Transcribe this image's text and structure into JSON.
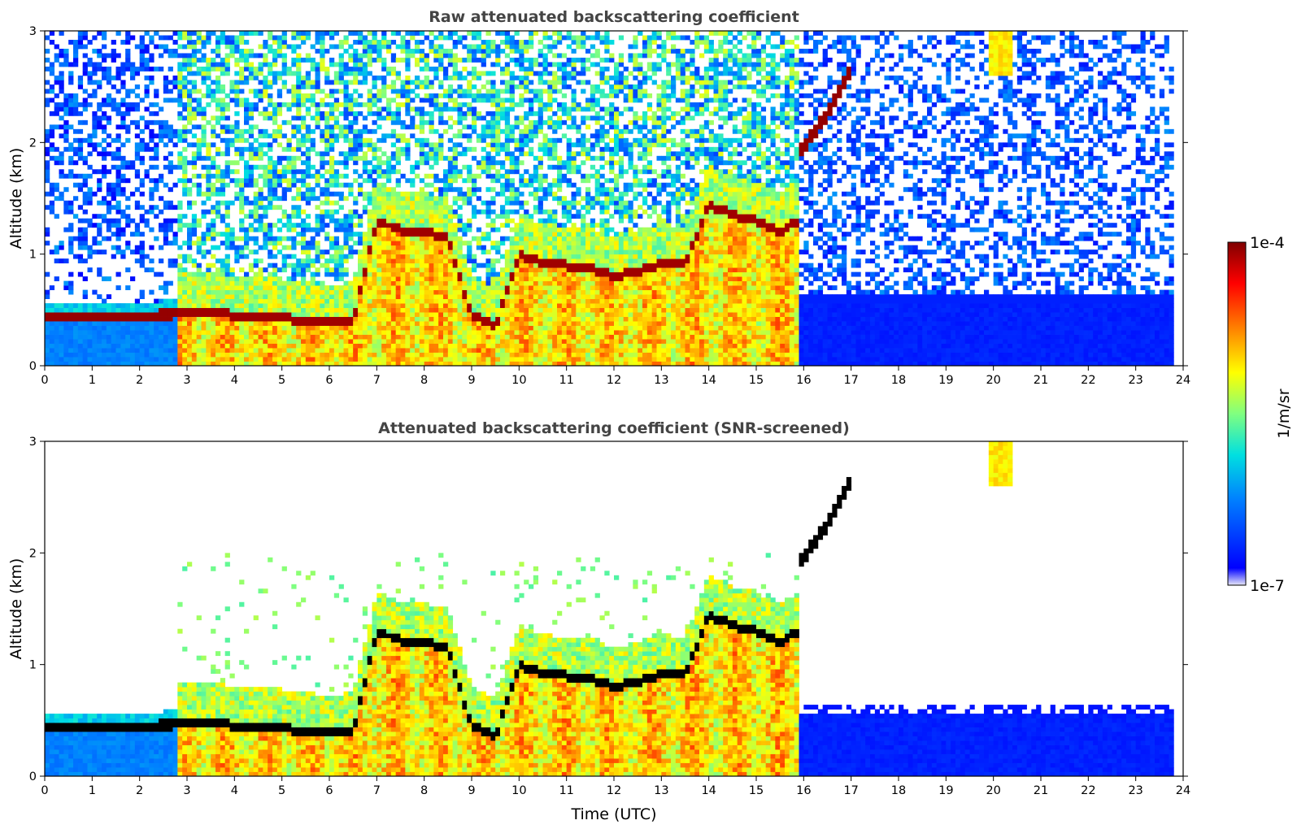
{
  "chart_data": [
    {
      "type": "heatmap",
      "title": "Raw attenuated backscattering coefficient",
      "xlabel": "",
      "ylabel": "Altitude (km)",
      "xlim": [
        0,
        24
      ],
      "ylim": [
        0,
        3
      ],
      "x_ticks": [
        "0",
        "1",
        "2",
        "3",
        "4",
        "5",
        "6",
        "7",
        "8",
        "9",
        "10",
        "11",
        "12",
        "13",
        "14",
        "15",
        "16",
        "17",
        "18",
        "19",
        "20",
        "21",
        "22",
        "23",
        "24"
      ],
      "y_ticks": [
        "0",
        "1",
        "2",
        "3"
      ],
      "data_end_time": 23.8,
      "screened": false,
      "features": {
        "boundary_layer_top_km": [
          [
            0,
            0.45
          ],
          [
            1,
            0.45
          ],
          [
            2,
            0.44
          ],
          [
            2.8,
            0.47
          ],
          [
            3.5,
            0.5
          ],
          [
            4,
            0.45
          ],
          [
            4.5,
            0.45
          ],
          [
            5,
            0.43
          ],
          [
            5.5,
            0.4
          ],
          [
            6,
            0.38
          ],
          [
            6.5,
            0.4
          ],
          [
            7,
            1.3
          ],
          [
            7.5,
            1.22
          ],
          [
            8,
            1.2
          ],
          [
            8.5,
            1.15
          ],
          [
            9,
            0.45
          ],
          [
            9.5,
            0.35
          ],
          [
            10,
            1.0
          ],
          [
            10.5,
            0.92
          ],
          [
            11,
            0.9
          ],
          [
            11.5,
            0.88
          ],
          [
            12,
            0.8
          ],
          [
            12.5,
            0.85
          ],
          [
            13,
            0.92
          ],
          [
            13.5,
            0.9
          ],
          [
            14,
            1.45
          ],
          [
            14.5,
            1.35
          ],
          [
            15,
            1.3
          ],
          [
            15.5,
            1.2
          ],
          [
            15.9,
            1.3
          ]
        ],
        "rising_layer_km": [
          [
            15.9,
            1.9
          ],
          [
            16.5,
            2.25
          ],
          [
            17,
            2.65
          ]
        ],
        "high_cloud": {
          "time_range": [
            19.9,
            20.4
          ],
          "altitude_range": [
            2.6,
            3.0
          ]
        },
        "aerosol_fill_time_range": [
          2.8,
          15.9
        ],
        "clear_boundary_layer_top_after_16_km": 0.55
      }
    },
    {
      "type": "heatmap",
      "title": "Attenuated backscattering coefficient (SNR-screened)",
      "xlabel": "Time (UTC)",
      "ylabel": "Altitude (km)",
      "xlim": [
        0,
        24
      ],
      "ylim": [
        0,
        3
      ],
      "x_ticks": [
        "0",
        "1",
        "2",
        "3",
        "4",
        "5",
        "6",
        "7",
        "8",
        "9",
        "10",
        "11",
        "12",
        "13",
        "14",
        "15",
        "16",
        "17",
        "18",
        "19",
        "20",
        "21",
        "22",
        "23",
        "24"
      ],
      "y_ticks": [
        "0",
        "1",
        "2",
        "3"
      ],
      "data_end_time": 23.8,
      "screened": true
    }
  ],
  "colorbar": {
    "label": "1/m/sr",
    "max_label": "1e-4",
    "min_label": "1e-7",
    "scale": "log",
    "range": [
      1e-07,
      0.0001
    ],
    "colormap": "jet-like (white → blue → cyan → green → yellow → orange → red → dark red)",
    "colors": [
      "#e8e8f8",
      "#0000ff",
      "#0080ff",
      "#00e0e0",
      "#80ff80",
      "#ffff00",
      "#ff8000",
      "#ff0000",
      "#800000"
    ]
  }
}
